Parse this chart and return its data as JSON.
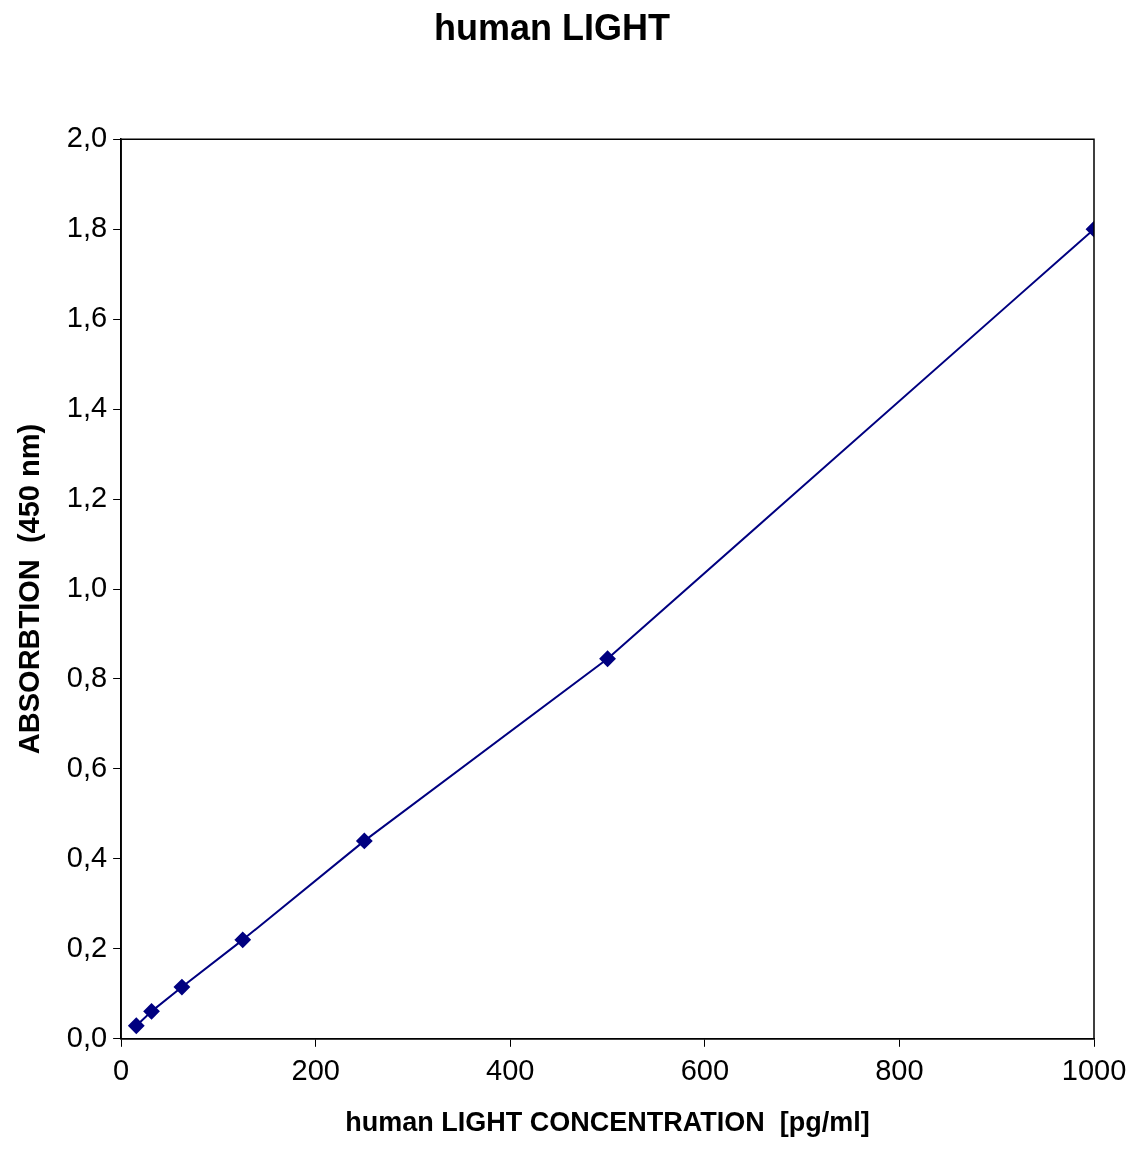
{
  "chart_data": {
    "type": "line",
    "title": "human LIGHT",
    "xlabel": "human LIGHT CONCENTRATION  [pg/ml]",
    "ylabel": "ABSORBTION  (450 nm)",
    "x": [
      15.6,
      31.25,
      62.5,
      125,
      250,
      500,
      1000
    ],
    "series": [
      {
        "color": "#000080",
        "values": [
          0.029,
          0.061,
          0.115,
          0.22,
          0.44,
          0.845,
          1.8
        ]
      }
    ],
    "xlim": [
      0,
      1000
    ],
    "xticks": [
      0,
      200,
      400,
      600,
      800,
      1000
    ],
    "ylim": [
      0,
      2
    ],
    "yticks": [
      {
        "value": 0,
        "label": "0,0"
      },
      {
        "value": 0.2,
        "label": "0,2"
      },
      {
        "value": 0.4,
        "label": "0,4"
      },
      {
        "value": 0.6,
        "label": "0,6"
      },
      {
        "value": 0.8,
        "label": "0,8"
      },
      {
        "value": 1,
        "label": "1,0"
      },
      {
        "value": 1.2,
        "label": "1,2"
      },
      {
        "value": 1.4,
        "label": "1,4"
      },
      {
        "value": 1.6,
        "label": "1,6"
      },
      {
        "value": 1.8,
        "label": "1,8"
      },
      {
        "value": 2,
        "label": "2,0"
      }
    ],
    "grid": false,
    "legend": false,
    "marker": "diamond",
    "line_style": "solid"
  }
}
